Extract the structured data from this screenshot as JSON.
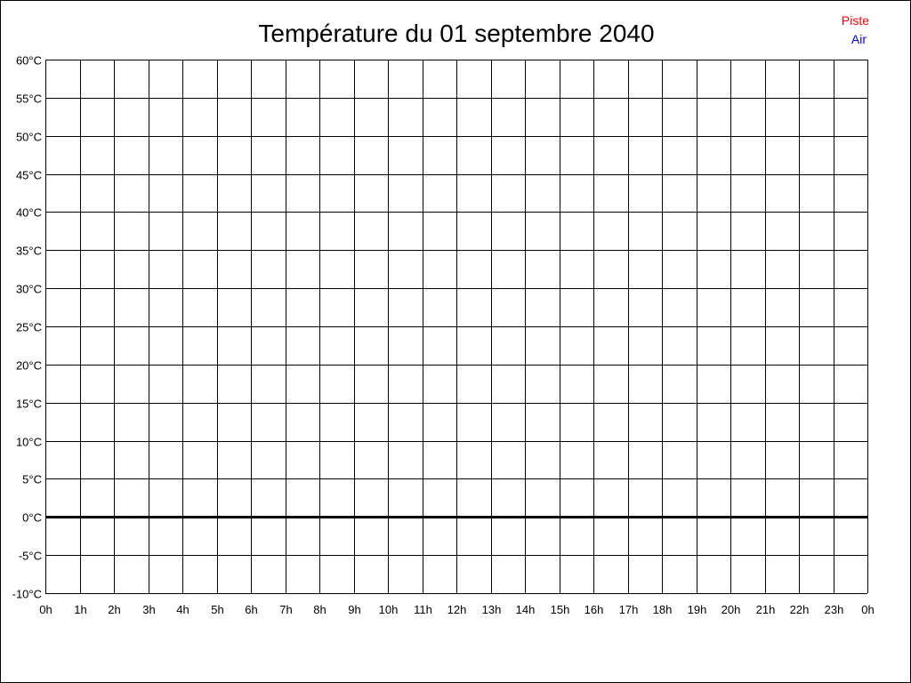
{
  "chart_data": {
    "type": "line",
    "title": "Température du 01 septembre 2040",
    "xlabel": "",
    "ylabel": "",
    "x_tick_labels": [
      "0h",
      "1h",
      "2h",
      "3h",
      "4h",
      "5h",
      "6h",
      "7h",
      "8h",
      "9h",
      "10h",
      "11h",
      "12h",
      "13h",
      "14h",
      "15h",
      "16h",
      "17h",
      "18h",
      "19h",
      "20h",
      "21h",
      "22h",
      "23h",
      "0h"
    ],
    "y_tick_labels": [
      "60°C",
      "55°C",
      "50°C",
      "45°C",
      "40°C",
      "35°C",
      "30°C",
      "25°C",
      "20°C",
      "15°C",
      "10°C",
      "5°C",
      "0°C",
      "-5°C",
      "-10°C"
    ],
    "ylim": [
      -10,
      60
    ],
    "y_step": 5,
    "xlim": [
      0,
      24
    ],
    "grid": true,
    "legend_position": "top-right",
    "series": [
      {
        "name": "Piste",
        "color": "#ff0000",
        "values": []
      },
      {
        "name": "Air",
        "color": "#0000ff",
        "values": []
      }
    ]
  }
}
